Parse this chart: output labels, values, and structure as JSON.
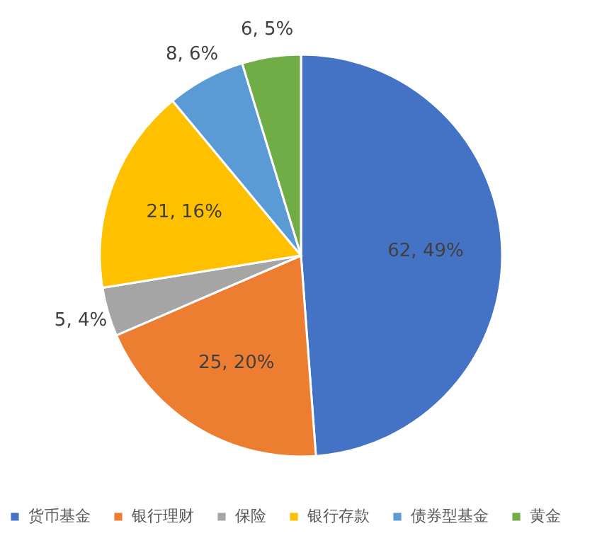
{
  "chart_data": {
    "type": "pie",
    "categories": [
      "货币基金",
      "银行理财",
      "保险",
      "银行存款",
      "债券型基金",
      "黄金"
    ],
    "values": [
      62,
      25,
      5,
      21,
      8,
      6
    ],
    "colors": [
      "#4472c4",
      "#ed7d31",
      "#a5a5a5",
      "#ffc000",
      "#5b9bd5",
      "#70ad47"
    ],
    "value_labels": [
      "62, 49%",
      "25, 20%",
      "5, 4%",
      "21, 16%",
      "8, 6%",
      "6, 5%"
    ],
    "legend": "bottom"
  }
}
